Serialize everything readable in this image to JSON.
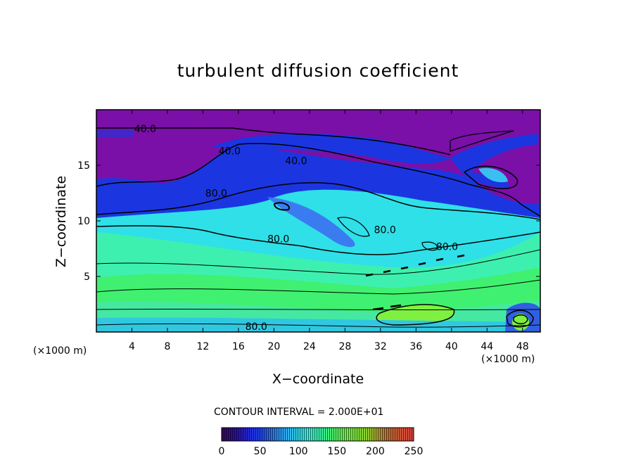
{
  "chart_data": {
    "type": "heatmap",
    "title": "turbulent diffusion coefficient",
    "xlabel": "X−coordinate",
    "ylabel": "Z−coordinate",
    "x_unit_left": "(×1000 m)",
    "x_unit_right": "(×1000 m)",
    "xlim": [
      0,
      50
    ],
    "ylim": [
      0,
      20
    ],
    "x_ticks": [
      4,
      8,
      12,
      16,
      20,
      24,
      28,
      32,
      36,
      40,
      44,
      48
    ],
    "y_ticks": [
      5,
      10,
      15
    ],
    "contour_interval_text": "CONTOUR INTERVAL = 2.000E+01",
    "colorbar": {
      "min": 0,
      "max": 250,
      "ticks": [
        0,
        50,
        100,
        150,
        200,
        250
      ]
    },
    "contour_labels": [
      {
        "text": "40.0",
        "x": 5.5,
        "y": 18.3
      },
      {
        "text": "40.0",
        "x": 15.0,
        "y": 16.3
      },
      {
        "text": "40.0",
        "x": 22.5,
        "y": 15.4
      },
      {
        "text": "80.0",
        "x": 13.5,
        "y": 12.5
      },
      {
        "text": "80.0",
        "x": 20.5,
        "y": 8.4
      },
      {
        "text": "80.0",
        "x": 32.5,
        "y": 9.2
      },
      {
        "text": "80.0",
        "x": 39.5,
        "y": 7.7
      },
      {
        "text": "80.0",
        "x": 18.0,
        "y": 0.5
      }
    ],
    "colors": {
      "low": "#7a0fa6",
      "blue": "#1830e0",
      "mid_blue": "#3aa0f0",
      "cyan": "#2fe0e0",
      "aqua": "#30f0b8",
      "green": "#40f060",
      "yellow_green": "#90f040"
    }
  }
}
